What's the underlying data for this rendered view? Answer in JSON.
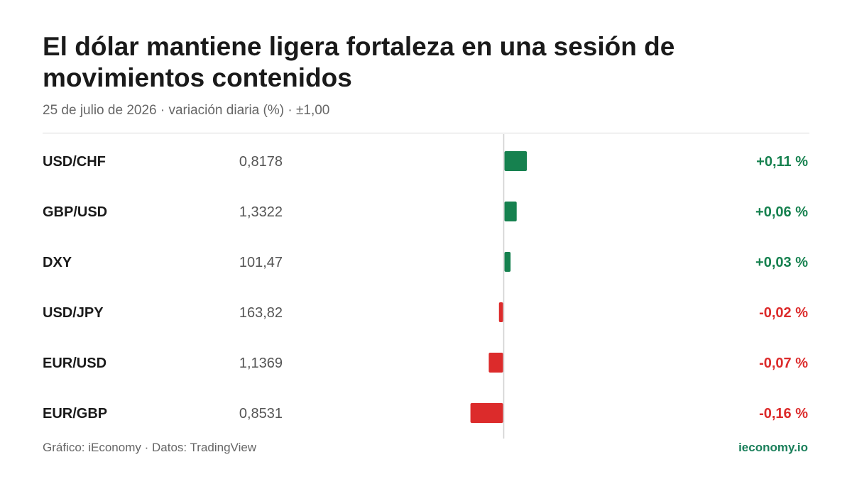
{
  "header": {
    "title": "El dólar mantiene ligera fortaleza en una sesión de movimientos contenidos",
    "subtitle": "25 de julio de 2026 · variación diaria (%) · ±1,00"
  },
  "footer": {
    "source": "Gráfico: iEconomy · Datos: TradingView",
    "brand": "ieconomy.io"
  },
  "colors": {
    "positive": "#16814f",
    "negative": "#dc2b2b",
    "axis": "#d0d0d0"
  },
  "chart_data": {
    "type": "bar",
    "orientation": "horizontal",
    "title": "El dólar mantiene ligera fortaleza en una sesión de movimientos contenidos",
    "subtitle": "25 de julio de 2026 · variación diaria (%) · ±1,00",
    "categories": [
      "USD/CHF",
      "GBP/USD",
      "DXY",
      "USD/JPY",
      "EUR/USD",
      "EUR/GBP"
    ],
    "rates": [
      "0,8178",
      "1,3322",
      "101,47",
      "163,82",
      "1,1369",
      "0,8531"
    ],
    "values": [
      0.11,
      0.06,
      0.03,
      -0.02,
      -0.07,
      -0.16
    ],
    "value_labels": [
      "+0,11 %",
      "+0,06 %",
      "+0,03 %",
      "-0,02 %",
      "-0,07 %",
      "-0,16 %"
    ],
    "xlim": [
      -1,
      1
    ],
    "grid": false,
    "legend": "none"
  }
}
